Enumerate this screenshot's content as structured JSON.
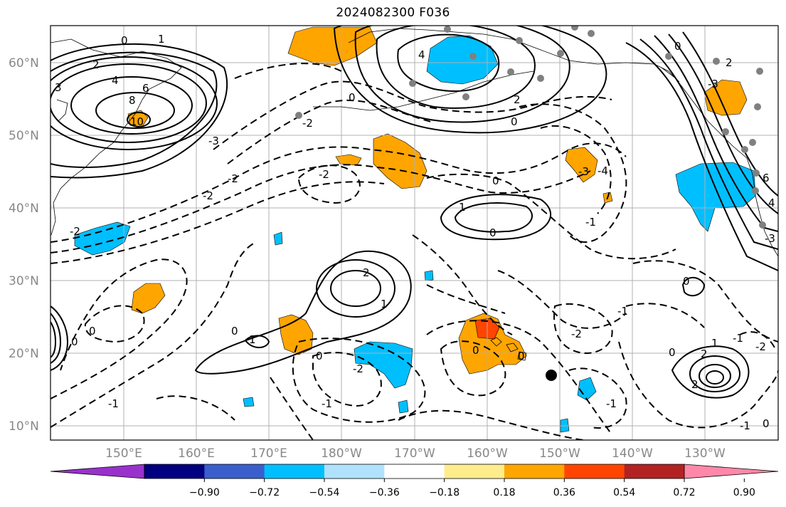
{
  "title": "2024082300 F036",
  "lat_labels": [
    "60°N",
    "50°N",
    "40°N",
    "30°N",
    "20°N",
    "10°N"
  ],
  "lon_labels": [
    "150°E",
    "160°E",
    "170°E",
    "180°W",
    "170°W",
    "160°W",
    "150°W",
    "140°W",
    "130°W"
  ],
  "colorbar": {
    "ticks": [
      "−0.90",
      "−0.72",
      "−0.54",
      "−0.36",
      "−0.18",
      "0.18",
      "0.36",
      "0.54",
      "0.72",
      "0.90"
    ],
    "colors": [
      "#9932cc",
      "#000080",
      "#3a5fcd",
      "#00bfff",
      "#b0e2ff",
      "#ffffff",
      "#ffec8b",
      "#ffa500",
      "#ff4500",
      "#b22222",
      "#ff88aa"
    ]
  },
  "contour_labels": [
    "10",
    "8",
    "6",
    "4",
    "2",
    "0",
    "1",
    "-1",
    "-2",
    "-3",
    "-4"
  ],
  "marker": "black-dot"
}
